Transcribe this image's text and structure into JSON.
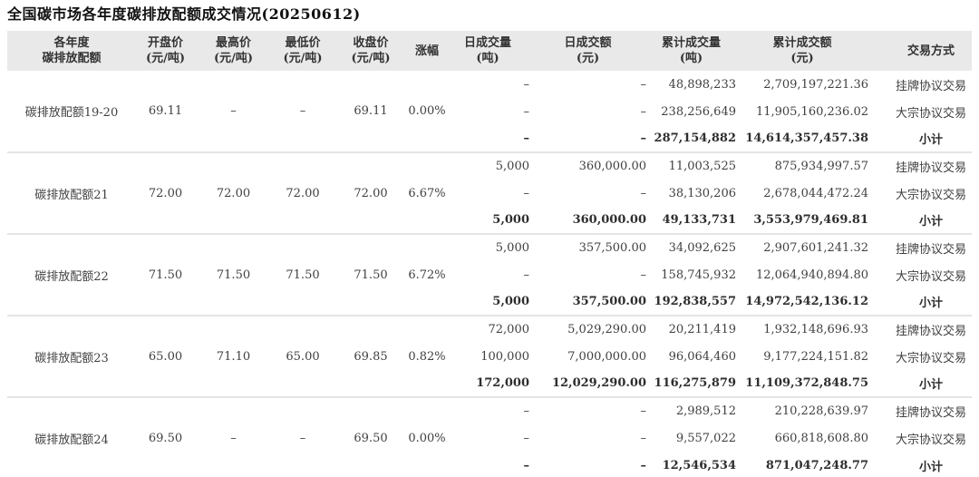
{
  "colors": {
    "header_bg": "#e9e9e9",
    "separator": "#e4e4e4",
    "body_text": "#404040",
    "title_text": "#111111"
  },
  "table": {
    "headers": [
      {
        "line1": "各年度",
        "line2": "碳排放配额"
      },
      {
        "line1": "开盘价",
        "line2": "(元/吨)"
      },
      {
        "line1": "最高价",
        "line2": "(元/吨)"
      },
      {
        "line1": "最低价",
        "line2": "(元/吨)"
      },
      {
        "line1": "收盘价",
        "line2": "(元/吨)"
      },
      {
        "line1": "涨幅"
      },
      {
        "line1": "日成交量",
        "line2": "(吨)"
      },
      {
        "line1": "日成交额",
        "line2": "(元)"
      },
      {
        "line1": "累计成交量",
        "line2": "(吨)"
      },
      {
        "line1": "累计成交额",
        "line2": "(元)"
      },
      {
        "line1": "交易方式"
      }
    ]
  },
  "chart_data": {
    "type": "table",
    "title": "全国碳市场各年度碳排放配额成交情况(20250612)",
    "columns": [
      "各年度碳排放配额",
      "开盘价(元/吨)",
      "最高价(元/吨)",
      "最低价(元/吨)",
      "收盘价(元/吨)",
      "涨幅",
      "日成交量(吨)",
      "日成交额(元)",
      "累计成交量(吨)",
      "累计成交额(元)",
      "交易方式"
    ],
    "blocks": [
      {
        "name": "碳排放配额19-20",
        "open": "69.11",
        "high": "–",
        "low": "–",
        "close": "69.11",
        "change": "0.00%",
        "rows": [
          {
            "vol": "–",
            "amt": "–",
            "cum_vol": "48,898,233",
            "cum_amt": "2,709,197,221.36",
            "method": "挂牌协议交易"
          },
          {
            "vol": "–",
            "amt": "–",
            "cum_vol": "238,256,649",
            "cum_amt": "11,905,160,236.02",
            "method": "大宗协议交易"
          },
          {
            "vol": "–",
            "amt": "–",
            "cum_vol": "287,154,882",
            "cum_amt": "14,614,357,457.38",
            "method": "小计"
          }
        ]
      },
      {
        "name": "碳排放配额21",
        "open": "72.00",
        "high": "72.00",
        "low": "72.00",
        "close": "72.00",
        "change": "6.67%",
        "rows": [
          {
            "vol": "5,000",
            "amt": "360,000.00",
            "cum_vol": "11,003,525",
            "cum_amt": "875,934,997.57",
            "method": "挂牌协议交易"
          },
          {
            "vol": "–",
            "amt": "–",
            "cum_vol": "38,130,206",
            "cum_amt": "2,678,044,472.24",
            "method": "大宗协议交易"
          },
          {
            "vol": "5,000",
            "amt": "360,000.00",
            "cum_vol": "49,133,731",
            "cum_amt": "3,553,979,469.81",
            "method": "小计"
          }
        ]
      },
      {
        "name": "碳排放配额22",
        "open": "71.50",
        "high": "71.50",
        "low": "71.50",
        "close": "71.50",
        "change": "6.72%",
        "rows": [
          {
            "vol": "5,000",
            "amt": "357,500.00",
            "cum_vol": "34,092,625",
            "cum_amt": "2,907,601,241.32",
            "method": "挂牌协议交易"
          },
          {
            "vol": "–",
            "amt": "–",
            "cum_vol": "158,745,932",
            "cum_amt": "12,064,940,894.80",
            "method": "大宗协议交易"
          },
          {
            "vol": "5,000",
            "amt": "357,500.00",
            "cum_vol": "192,838,557",
            "cum_amt": "14,972,542,136.12",
            "method": "小计"
          }
        ]
      },
      {
        "name": "碳排放配额23",
        "open": "65.00",
        "high": "71.10",
        "low": "65.00",
        "close": "69.85",
        "change": "0.82%",
        "rows": [
          {
            "vol": "72,000",
            "amt": "5,029,290.00",
            "cum_vol": "20,211,419",
            "cum_amt": "1,932,148,696.93",
            "method": "挂牌协议交易"
          },
          {
            "vol": "100,000",
            "amt": "7,000,000.00",
            "cum_vol": "96,064,460",
            "cum_amt": "9,177,224,151.82",
            "method": "大宗协议交易"
          },
          {
            "vol": "172,000",
            "amt": "12,029,290.00",
            "cum_vol": "116,275,879",
            "cum_amt": "11,109,372,848.75",
            "method": "小计"
          }
        ]
      },
      {
        "name": "碳排放配额24",
        "open": "69.50",
        "high": "–",
        "low": "–",
        "close": "69.50",
        "change": "0.00%",
        "rows": [
          {
            "vol": "–",
            "amt": "–",
            "cum_vol": "2,989,512",
            "cum_amt": "210,228,639.97",
            "method": "挂牌协议交易"
          },
          {
            "vol": "–",
            "amt": "–",
            "cum_vol": "9,557,022",
            "cum_amt": "660,818,608.80",
            "method": "大宗协议交易"
          },
          {
            "vol": "–",
            "amt": "–",
            "cum_vol": "12,546,534",
            "cum_amt": "871,047,248.77",
            "method": "小计"
          }
        ]
      }
    ]
  }
}
